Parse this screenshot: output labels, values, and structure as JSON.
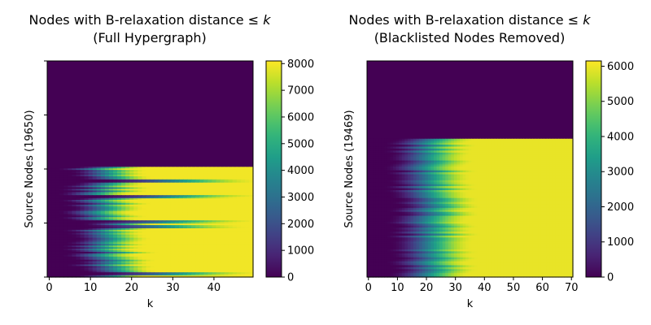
{
  "chart_data": [
    {
      "type": "heatmap",
      "title_line1": "Nodes with B-relaxation distance ",
      "title_math": "≤ k",
      "title_line2": "(Full Hypergraph)",
      "xlabel": "k",
      "ylabel": "Source Nodes (19650)",
      "xlim": [
        -0.5,
        49.5
      ],
      "xticks": [
        0,
        10,
        20,
        30,
        40
      ],
      "colorbar": {
        "min": 0,
        "max": 8100,
        "ticks": [
          0,
          1000,
          2000,
          3000,
          4000,
          5000,
          6000,
          7000,
          8000
        ]
      },
      "colormap": "viridis",
      "region_boundary_fraction": 0.49,
      "y_tick_count": 5,
      "plateau_value": 7950,
      "rise_start_k": 4,
      "rise_end_k": 22,
      "dark_bands": [
        0.12,
        0.265,
        0.5,
        0.54,
        0.98
      ]
    },
    {
      "type": "heatmap",
      "title_line1": "Nodes with B-relaxation distance ",
      "title_math": "≤ k",
      "title_line2": "(Blacklisted Nodes Removed)",
      "xlabel": "k",
      "ylabel": "Source Nodes (19469)",
      "xlim": [
        -0.5,
        70.5
      ],
      "xticks": [
        0,
        10,
        20,
        30,
        40,
        50,
        60,
        70
      ],
      "colorbar": {
        "min": 0,
        "max": 6150,
        "ticks": [
          0,
          1000,
          2000,
          3000,
          4000,
          5000,
          6000
        ]
      },
      "colormap": "viridis",
      "region_boundary_fraction": 0.36,
      "y_tick_count": 0,
      "plateau_value": 5950,
      "rise_start_k": 7,
      "rise_end_k": 35,
      "dark_bands": []
    }
  ]
}
